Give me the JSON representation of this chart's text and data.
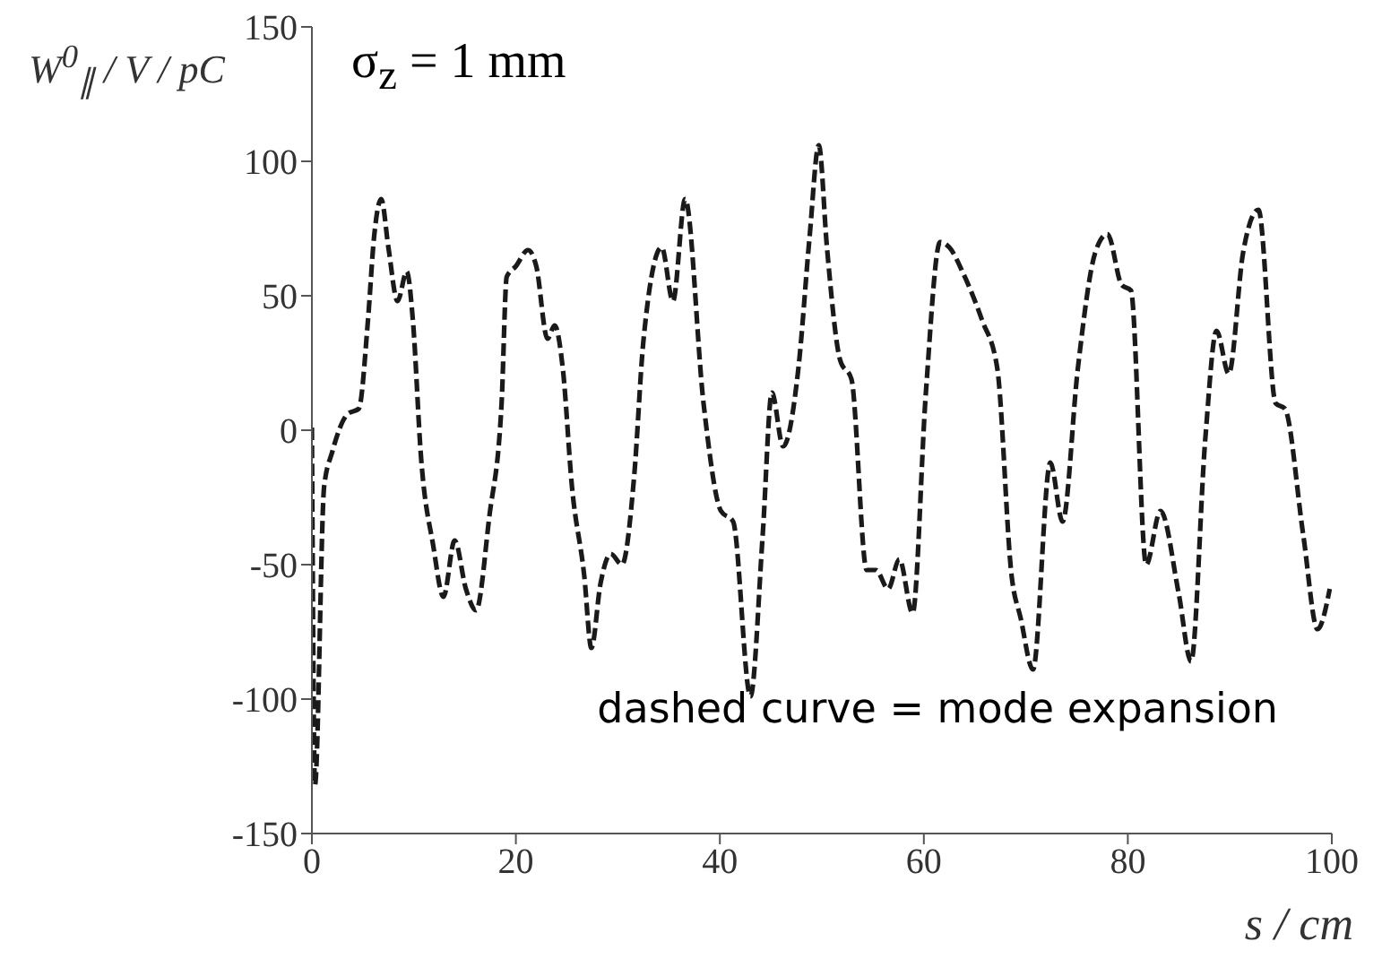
{
  "chart_data": {
    "type": "line",
    "xlabel": "s / cm",
    "ylabel": "W$^{0}$$_{∥}$ / V / pC",
    "annotations": [
      "σ$_{z}$ = 1 mm",
      "dashed curve = mode expansion"
    ],
    "xlim": [
      0,
      100
    ],
    "xticks": [
      0,
      20,
      40,
      60,
      80,
      100
    ],
    "ylim": [
      -150,
      150
    ],
    "yticks": [
      -150,
      -100,
      -50,
      0,
      50,
      100,
      150
    ],
    "marker": "none",
    "line_style": "dashed",
    "series": [
      {
        "color": "#1a1a1a",
        "x": [
          0,
          0.3,
          1.2,
          2,
          3.5,
          4.6,
          5.5,
          6.1,
          6.8,
          7.5,
          8.4,
          9.3,
          9.9,
          10.7,
          11.9,
          12.9,
          14,
          15.1,
          16.1,
          17.4,
          18.6,
          19.1,
          20,
          21.2,
          22,
          23.1,
          23.8,
          24.6,
          25.5,
          26.7,
          27.4,
          28.3,
          29.3,
          30.4,
          31.6,
          32.5,
          34.3,
          35.4,
          36.6,
          38.4,
          40.1,
          41.3,
          43,
          44.2,
          45.1,
          46.2,
          47.7,
          48.8,
          49.7,
          50.5,
          51.8,
          52.9,
          54.4,
          55.3,
          56.5,
          57.6,
          58.9,
          60.2,
          61.6,
          62.5,
          63.9,
          65.7,
          67.2,
          68.6,
          69.5,
          70.7,
          72.4,
          73.6,
          75.1,
          76.8,
          78,
          79.4,
          80.3,
          81.8,
          83.2,
          85,
          86.2,
          87.6,
          88.7,
          89.9,
          91.3,
          92.8,
          94.5,
          95.4,
          97.2,
          98.6,
          99.8
        ],
        "values": [
          1,
          -132,
          -21,
          -8,
          6,
          8,
          41,
          72,
          86,
          68,
          48,
          59,
          41,
          -10,
          -43,
          -62,
          -41,
          -59,
          -67,
          -32,
          10,
          57,
          61,
          67,
          61,
          34,
          39,
          23,
          -21,
          -54,
          -81,
          -57,
          -46,
          -50,
          -17,
          33,
          68,
          48,
          86,
          10,
          -30,
          -34,
          -99,
          -39,
          14,
          -6,
          23,
          72,
          106,
          68,
          26,
          19,
          -52,
          -52,
          -59,
          -48,
          -68,
          14,
          70,
          68,
          58,
          41,
          23,
          -54,
          -70,
          -89,
          -12,
          -34,
          23,
          66,
          73,
          54,
          52,
          -50,
          -30,
          -61,
          -86,
          -3,
          37,
          21,
          66,
          82,
          10,
          8,
          -39,
          -74,
          -59
        ]
      }
    ]
  }
}
